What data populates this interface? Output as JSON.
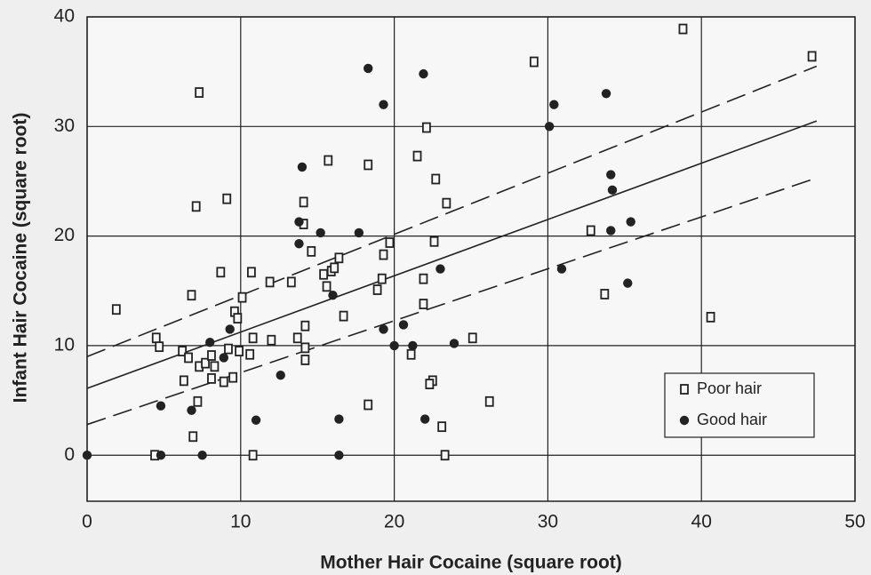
{
  "chart_data": {
    "type": "scatter",
    "xlabel": "Mother Hair Cocaine (square root)",
    "ylabel": "Infant Hair Cocaine (square root)",
    "xlim": [
      0,
      50
    ],
    "ylim": [
      -4.2,
      40
    ],
    "xticks": [
      0,
      10,
      20,
      30,
      40,
      50
    ],
    "yticks": [
      0,
      10,
      20,
      30,
      40
    ],
    "grid": true,
    "legend": "lower right",
    "series": [
      {
        "name": "Poor hair",
        "color": "#222222",
        "marker": "square",
        "x": [
          1.9,
          7.3,
          7.1,
          9.1,
          6.8,
          8.7,
          10.7,
          11.9,
          13.3,
          10.1,
          9.6,
          9.8,
          4.5,
          4.7,
          6.2,
          6.6,
          7.3,
          7.7,
          8.1,
          8.3,
          9.2,
          9.9,
          10.6,
          10.8,
          12.0,
          6.3,
          8.1,
          8.9,
          9.5,
          7.2,
          6.9,
          4.4,
          10.8,
          14.1,
          15.7,
          14.1,
          14.6,
          15.4,
          15.9,
          15.6,
          16.4,
          16.1,
          13.7,
          14.2,
          14.2,
          14.2,
          16.7,
          18.3,
          18.3,
          19.7,
          19.3,
          19.2,
          18.9,
          21.5,
          22.1,
          22.7,
          23.4,
          22.6,
          21.9,
          21.9,
          21.1,
          22.5,
          22.3,
          23.1,
          23.3,
          25.1,
          26.2,
          29.1,
          32.8,
          33.7,
          38.8,
          40.6,
          47.2
        ],
        "values": [
          13.3,
          33.1,
          22.7,
          23.4,
          14.6,
          16.7,
          16.7,
          15.8,
          15.8,
          14.4,
          13.1,
          12.5,
          10.7,
          9.9,
          9.5,
          8.9,
          8.1,
          8.4,
          9.1,
          8.1,
          9.7,
          9.5,
          9.2,
          10.7,
          10.5,
          6.8,
          7.0,
          6.7,
          7.1,
          4.9,
          1.7,
          0,
          0,
          21.1,
          26.9,
          23.1,
          18.6,
          16.5,
          16.8,
          15.4,
          18.0,
          17.1,
          10.7,
          11.8,
          9.8,
          8.7,
          12.7,
          26.5,
          4.6,
          19.4,
          18.3,
          16.1,
          15.1,
          27.3,
          29.9,
          25.2,
          23.0,
          19.5,
          16.1,
          13.8,
          9.2,
          6.8,
          6.5,
          2.6,
          0,
          10.7,
          4.9,
          35.9,
          20.5,
          14.7,
          38.9,
          12.6,
          36.4
        ]
      },
      {
        "name": "Good hair",
        "color": "#222222",
        "marker": "circle",
        "x": [
          0,
          4.8,
          7.5,
          16.4,
          4.8,
          6.8,
          8.0,
          8.9,
          9.3,
          11.0,
          12.6,
          14.0,
          13.8,
          13.8,
          15.2,
          16.0,
          16.4,
          17.7,
          18.3,
          19.3,
          19.3,
          20.0,
          20.6,
          21.2,
          21.9,
          22.0,
          23.0,
          23.9,
          30.1,
          30.4,
          30.9,
          33.8,
          34.1,
          34.2,
          34.1,
          35.4,
          35.2
        ],
        "values": [
          0,
          0,
          0,
          0,
          4.5,
          4.1,
          10.3,
          8.9,
          11.5,
          3.2,
          7.3,
          26.3,
          21.3,
          19.3,
          20.3,
          14.6,
          3.3,
          20.3,
          35.3,
          32.0,
          11.5,
          10.0,
          11.9,
          10.0,
          34.8,
          3.3,
          17.0,
          10.2,
          30.0,
          32.0,
          17.0,
          33.0,
          25.6,
          24.2,
          20.5,
          21.3,
          15.7
        ]
      }
    ],
    "fit_lines": [
      {
        "style": "solid",
        "x": [
          0,
          47.5
        ],
        "values": [
          6.1,
          30.5
        ]
      },
      {
        "style": "dashed",
        "x": [
          0,
          47.5
        ],
        "values": [
          9.0,
          35.5
        ]
      },
      {
        "style": "dashed",
        "x": [
          0,
          47.5
        ],
        "values": [
          2.8,
          25.3
        ]
      }
    ]
  }
}
